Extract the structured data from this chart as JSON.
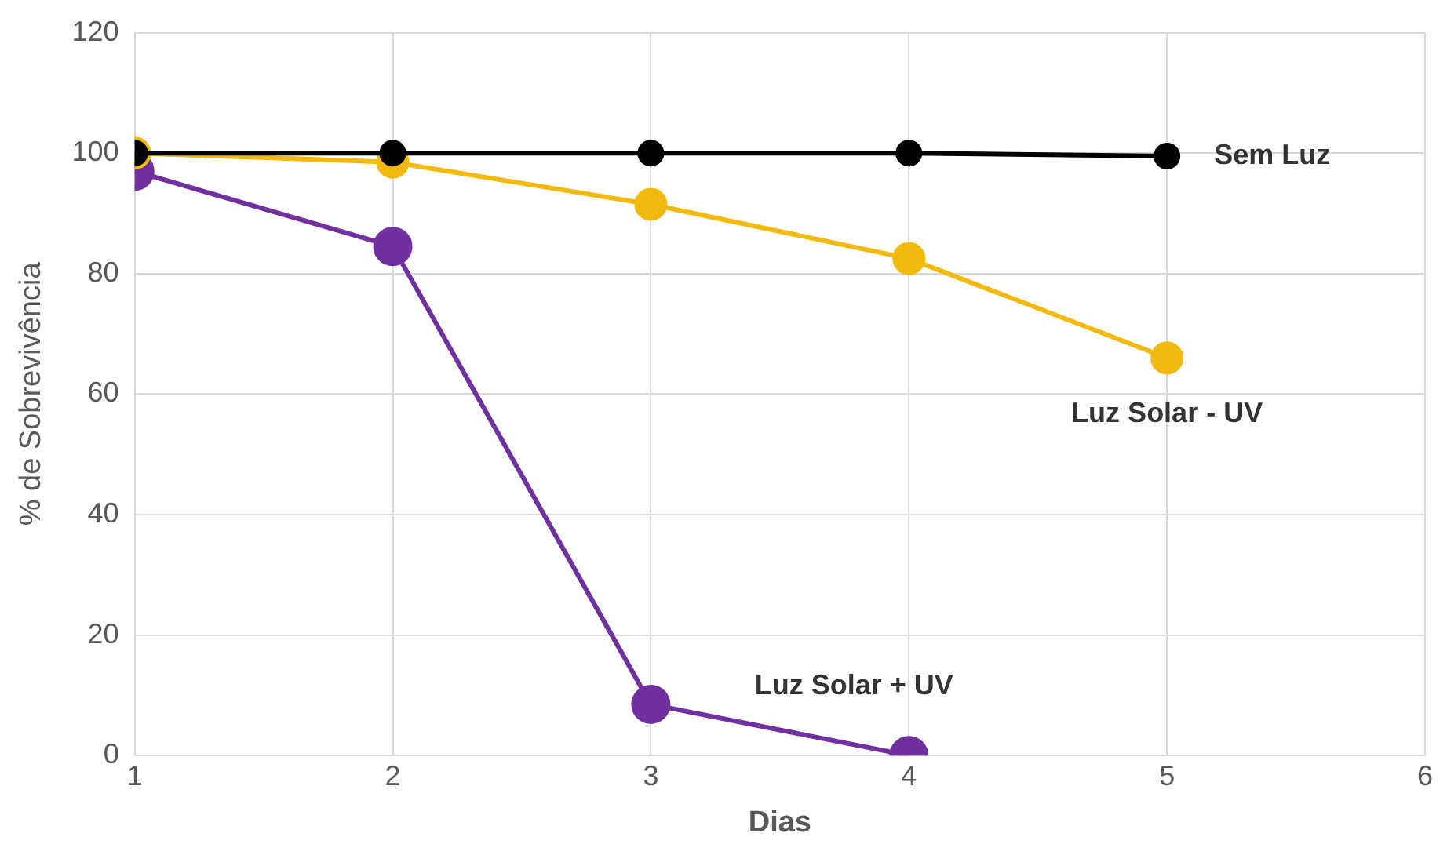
{
  "chart_data": {
    "type": "line",
    "xlabel": "Dias",
    "ylabel": "% de Sobrevivência",
    "x": [
      1,
      2,
      3,
      4,
      5
    ],
    "series": [
      {
        "name": "Sem Luz",
        "color": "#000000",
        "values": [
          100,
          100,
          100,
          100,
          99.5
        ]
      },
      {
        "name": "Luz Solar - UV",
        "color": "#f2b90f",
        "values": [
          100,
          98.5,
          91.5,
          82.5,
          66
        ]
      },
      {
        "name": "Luz Solar + UV",
        "color": "#7030a0",
        "values": [
          97,
          84.5,
          8.5,
          0,
          null
        ]
      }
    ],
    "xlim": [
      1,
      6
    ],
    "xticks": [
      1,
      2,
      3,
      4,
      5,
      6
    ],
    "ylim": [
      0,
      120
    ],
    "yticks": [
      0,
      20,
      40,
      60,
      80,
      100,
      120
    ],
    "grid": true,
    "legend": false,
    "marker": "circle",
    "line_style": "solid"
  }
}
